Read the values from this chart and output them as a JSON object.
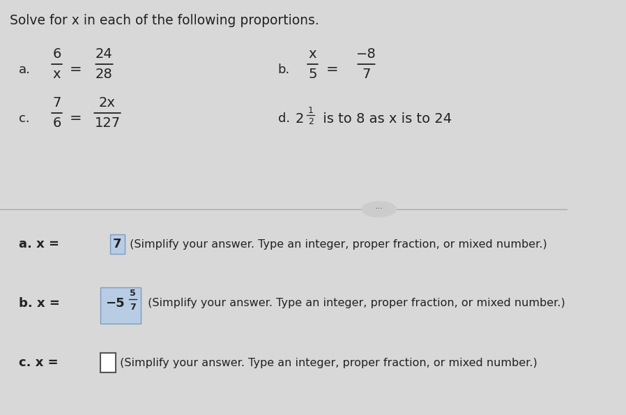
{
  "bg_color_top": "#d8d8d8",
  "bg_color_bottom": "#e8e8e8",
  "title": "Solve for x in each of the following proportions.",
  "font_color": "#222222",
  "problems": {
    "a_num": "6",
    "a_den": "x",
    "a_num2": "24",
    "a_den2": "28",
    "b_num": "x",
    "b_den": "5",
    "b_num2": "−8",
    "b_den2": "7",
    "c_num": "7",
    "c_den": "6",
    "c_num2": "2x",
    "c_den2": "127",
    "d_text1": "2",
    "d_frac_num": "1",
    "d_frac_den": "2",
    "d_text2": " is to 8 as x is to 24"
  },
  "ans_a_highlight": "#b8cce4",
  "ans_b_highlight": "#b0c4de",
  "ans_c_box": "white",
  "divider_color": "#999999"
}
